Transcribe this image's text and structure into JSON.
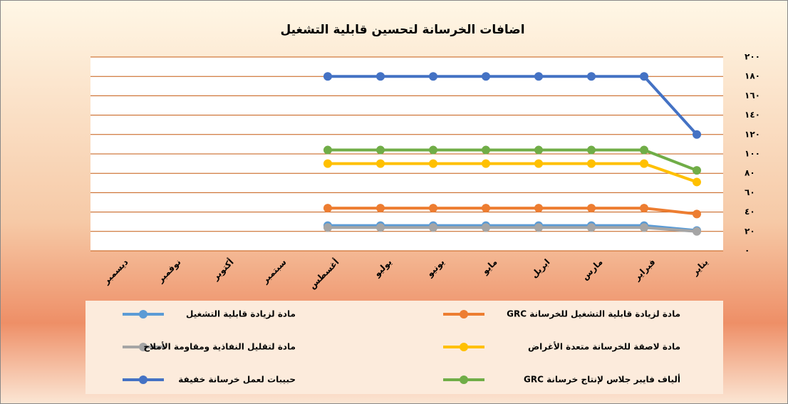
{
  "chart_data": {
    "type": "line",
    "title": "اضافات الخرسانة لتحسين قابلية التشغيل",
    "categories": [
      "يناير",
      "فبراير",
      "مارس",
      "ابريل",
      "مايو",
      "يونيو",
      "يوليو",
      "أغسطس",
      "سبتمبر",
      "أكتوبر",
      "نوفمبر",
      "ديسمبر"
    ],
    "x_reversed": true,
    "ylim": [
      0,
      200
    ],
    "yticks": [
      {
        "value": 0,
        "label": "٠"
      },
      {
        "value": 20,
        "label": "٢٠"
      },
      {
        "value": 40,
        "label": "٤٠"
      },
      {
        "value": 60,
        "label": "٦٠"
      },
      {
        "value": 80,
        "label": "٨٠"
      },
      {
        "value": 100,
        "label": "١٠٠"
      },
      {
        "value": 120,
        "label": "١٢٠"
      },
      {
        "value": 140,
        "label": "١٤٠"
      },
      {
        "value": 160,
        "label": "١٦٠"
      },
      {
        "value": 180,
        "label": "١٨٠"
      },
      {
        "value": 200,
        "label": "٢٠٠"
      }
    ],
    "grid": true,
    "series": [
      {
        "name": "مادة لزيادة قابلية التشغيل للخرسانة GRC",
        "color": "#ED7D31",
        "values": [
          38,
          44,
          44,
          44,
          44,
          44,
          44,
          44,
          null,
          null,
          null,
          null
        ]
      },
      {
        "name": "مادة لزيادة قابلية التشغيل",
        "color": "#5B9BD5",
        "values": [
          21,
          26,
          26,
          26,
          26,
          26,
          26,
          26,
          null,
          null,
          null,
          null
        ]
      },
      {
        "name": "مادة لاصقة للخرسانة متعدة الأغراض",
        "color": "#FFC000",
        "values": [
          71,
          90,
          90,
          90,
          90,
          90,
          90,
          90,
          null,
          null,
          null,
          null
        ]
      },
      {
        "name": "مادة لتقليل النفاذية ومقاومة الأملاح",
        "color": "#A5A5A5",
        "values": [
          20,
          24,
          24,
          24,
          24,
          24,
          24,
          24,
          null,
          null,
          null,
          null
        ]
      },
      {
        "name": "ألياف فايبر جلاس لإنتاج خرسانة GRC",
        "color": "#70AD47",
        "values": [
          83,
          104,
          104,
          104,
          104,
          104,
          104,
          104,
          null,
          null,
          null,
          null
        ]
      },
      {
        "name": "حبيبات لعمل خرسانة خفيفة",
        "color": "#4472C4",
        "values": [
          120,
          180,
          180,
          180,
          180,
          180,
          180,
          180,
          null,
          null,
          null,
          null
        ]
      }
    ]
  }
}
